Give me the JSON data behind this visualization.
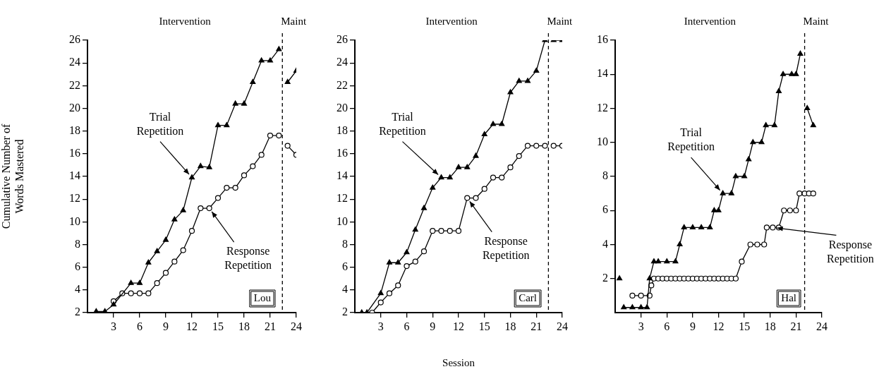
{
  "chart_data": [
    {
      "type": "line",
      "ylabel": "Cumulative Number of Words Mastered",
      "xlim": [
        0,
        24
      ],
      "xticks": [
        3,
        6,
        9,
        12,
        15,
        18,
        21,
        24
      ],
      "ylim": [
        2,
        26
      ],
      "yticks": [
        2,
        4,
        6,
        8,
        10,
        12,
        14,
        16,
        18,
        20,
        22,
        24,
        26
      ],
      "grid": false,
      "legend": false,
      "line_style": "solid",
      "series": [
        {
          "name": "Trial Repetition",
          "color": "#000000",
          "marker": "triangle",
          "x": [
            1,
            2,
            3,
            5,
            6,
            7,
            8,
            9,
            10,
            11,
            12,
            13,
            14,
            15,
            16,
            17,
            18,
            19,
            20,
            21,
            22,
            null,
            23,
            24
          ],
          "values": [
            2.1,
            2.1,
            2.7,
            4.6,
            4.6,
            6.4,
            7.4,
            8.4,
            10.2,
            11,
            13.9,
            14.9,
            14.8,
            18.5,
            18.5,
            20.4,
            20.4,
            22.3,
            24.2,
            24.2,
            25.2,
            null,
            22.3,
            23.3
          ]
        },
        {
          "name": "Response Repetition",
          "color": "#000000",
          "marker": "circle",
          "x": [
            3,
            4,
            5,
            6,
            7,
            8,
            9,
            10,
            11,
            12,
            13,
            14,
            15,
            16,
            17,
            18,
            19,
            20,
            21,
            22,
            null,
            23,
            24
          ],
          "values": [
            3,
            3.7,
            3.7,
            3.7,
            3.7,
            4.6,
            5.5,
            6.5,
            7.5,
            9.2,
            11.2,
            11.2,
            12.1,
            13,
            13,
            14.1,
            14.9,
            15.9,
            17.6,
            17.6,
            null,
            16.7,
            15.9
          ]
        }
      ],
      "ref_lines": [
        {
          "axis": "x",
          "value": 22.4,
          "line_style": "dashed"
        }
      ],
      "annotations": [
        "Intervention",
        "Maint",
        "Lou"
      ]
    },
    {
      "type": "line",
      "xlabel": "Session",
      "xlim": [
        0,
        24
      ],
      "xticks": [
        3,
        6,
        9,
        12,
        15,
        18,
        21,
        24
      ],
      "ylim": [
        2,
        26
      ],
      "yticks": [
        2,
        4,
        6,
        8,
        10,
        12,
        14,
        16,
        18,
        20,
        22,
        24,
        26
      ],
      "grid": false,
      "legend": false,
      "line_style": "solid",
      "series": [
        {
          "name": "Trial Repetition",
          "color": "#000000",
          "marker": "triangle",
          "x": [
            0.8,
            1.4,
            3,
            4,
            5,
            6,
            7,
            8,
            9,
            10,
            11,
            12,
            13,
            14,
            15,
            16,
            17,
            18,
            19,
            20,
            21,
            22,
            null,
            23,
            24
          ],
          "values": [
            2,
            2,
            3.7,
            6.4,
            6.4,
            7.3,
            9.3,
            11.2,
            13,
            13.9,
            13.9,
            14.8,
            14.8,
            15.8,
            17.7,
            18.6,
            18.6,
            21.4,
            22.4,
            22.4,
            23.3,
            26,
            null,
            26,
            26
          ]
        },
        {
          "name": "Response Repetition",
          "color": "#000000",
          "marker": "circle",
          "x": [
            2,
            3,
            4,
            5,
            6,
            7,
            8,
            9,
            10,
            11,
            12,
            13,
            14,
            15,
            16,
            17,
            18,
            19,
            20,
            21,
            22,
            null,
            23,
            24
          ],
          "values": [
            2,
            2.9,
            3.7,
            4.4,
            6.1,
            6.5,
            7.4,
            9.2,
            9.2,
            9.2,
            9.2,
            12.1,
            12.1,
            12.9,
            13.9,
            13.9,
            14.8,
            15.8,
            16.7,
            16.7,
            16.7,
            null,
            16.7,
            16.7
          ]
        }
      ],
      "ref_lines": [
        {
          "axis": "x",
          "value": 22.4,
          "line_style": "dashed"
        }
      ],
      "annotations": [
        "Intervention",
        "Maint",
        "Carl"
      ]
    },
    {
      "type": "line",
      "xlim": [
        0,
        24
      ],
      "xticks": [
        3,
        6,
        9,
        12,
        15,
        18,
        21,
        24
      ],
      "ylim": [
        0,
        16
      ],
      "yticks": [
        2,
        4,
        6,
        8,
        10,
        12,
        14,
        16
      ],
      "grid": false,
      "legend": false,
      "line_style": "solid",
      "series": [
        {
          "name": "Trial Repetition",
          "color": "#000000",
          "marker": "triangle",
          "x": [
            0.5,
            null,
            1,
            2,
            3,
            3.7,
            4,
            4.5,
            5,
            6,
            7,
            7.5,
            8,
            9,
            10,
            11,
            11.5,
            12,
            12.5,
            13.5,
            14,
            15,
            15.5,
            16,
            17,
            17.5,
            18.5,
            19,
            19.5,
            20.5,
            21,
            21.5,
            null,
            22.3,
            23
          ],
          "values": [
            2,
            null,
            0.3,
            0.3,
            0.3,
            0.3,
            2,
            3,
            3,
            3,
            3,
            4,
            5,
            5,
            5,
            5,
            6,
            6,
            7,
            7,
            8,
            8,
            9,
            10,
            10,
            11,
            11,
            13,
            14,
            14,
            14,
            15.2,
            null,
            12,
            11
          ]
        },
        {
          "name": "Response Repetition",
          "color": "#000000",
          "marker": "circle",
          "x": [
            2,
            3,
            4,
            4.2,
            4.5,
            5,
            5.5,
            6,
            6.5,
            7,
            7.5,
            8,
            8.5,
            9,
            9.5,
            10,
            10.5,
            11,
            11.5,
            12,
            12.5,
            13,
            13.5,
            14,
            14.7,
            15.7,
            16.5,
            17.3,
            17.6,
            18.3,
            19,
            19.6,
            20.3,
            21,
            21.4,
            22,
            22.5,
            23
          ],
          "values": [
            1,
            1,
            1,
            1.6,
            2,
            2,
            2,
            2,
            2,
            2,
            2,
            2,
            2,
            2,
            2,
            2,
            2,
            2,
            2,
            2,
            2,
            2,
            2,
            2,
            3,
            4,
            4,
            4,
            5,
            5,
            5,
            6,
            6,
            6,
            7,
            7,
            7,
            7
          ]
        }
      ],
      "ref_lines": [
        {
          "axis": "x",
          "value": 22,
          "line_style": "dashed"
        }
      ],
      "annotations": [
        "Intervention",
        "Maint",
        "Hal"
      ]
    }
  ]
}
